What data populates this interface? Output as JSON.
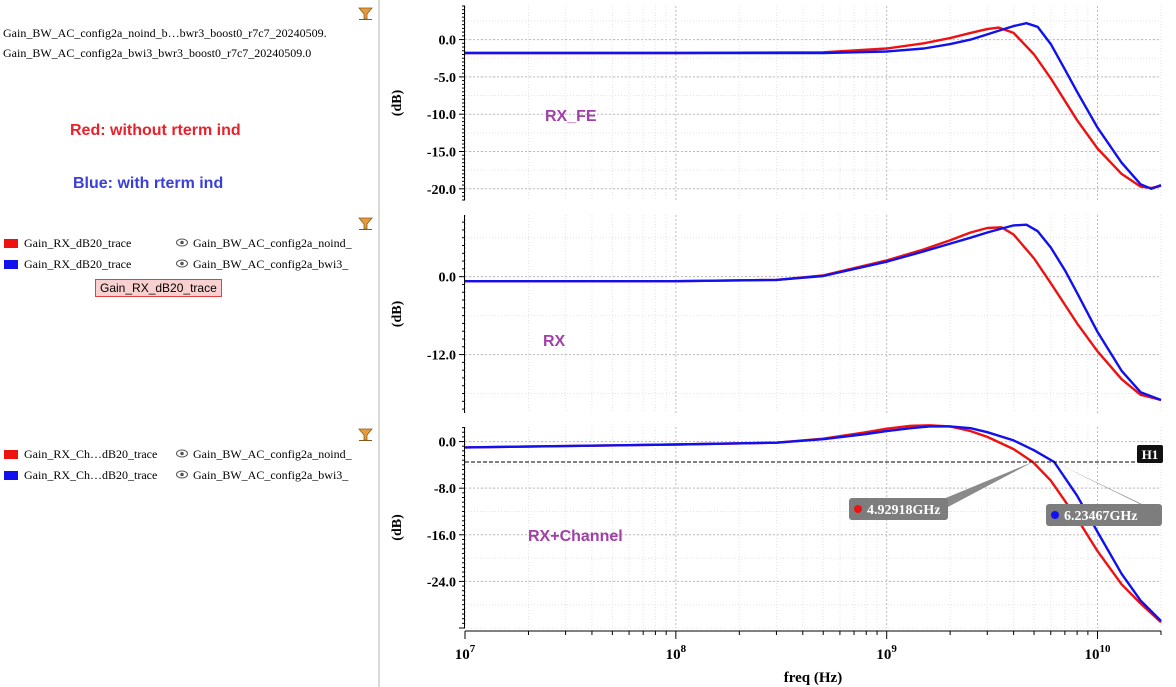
{
  "left_panel": {
    "files": [
      "Gain_BW_AC_config2a_noind_b…bwr3_boost0_r7c7_20240509.",
      "Gain_BW_AC_config2a_bwi3_bwr3_boost0_r7c7_20240509.0"
    ],
    "annotations": [
      {
        "text": "Red: without rterm ind",
        "color": "#e8212b"
      },
      {
        "text": "Blue: with rterm ind",
        "color": "#3a3fd9"
      }
    ],
    "legend_groups": [
      {
        "items": [
          {
            "name": "Gain_RX_dB20_trace",
            "source": "Gain_BW_AC_config2a_noind_",
            "color": "#ee1111"
          },
          {
            "name": "Gain_RX_dB20_trace",
            "source": "Gain_BW_AC_config2a_bwi3_",
            "color": "#1111ee"
          }
        ]
      },
      {
        "items": [
          {
            "name": "Gain_RX_Ch…dB20_trace",
            "source": "Gain_BW_AC_config2a_noind_",
            "color": "#ee1111"
          },
          {
            "name": "Gain_RX_Ch…dB20_trace",
            "source": "Gain_BW_AC_config2a_bwi3_",
            "color": "#1111ee"
          }
        ]
      }
    ],
    "selected_trace": "Gain_RX_dB20_trace"
  },
  "colors": {
    "red": "#ee1111",
    "blue": "#1111ee",
    "label": "#a040a8"
  },
  "chart_data": [
    {
      "type": "line",
      "title": "RX_FE",
      "xlabel": "freq (Hz)",
      "ylabel": "(dB)",
      "x_scale": "log",
      "xlim": [
        10000000.0,
        20000000000.0
      ],
      "ylim": [
        -21.5,
        4.5
      ],
      "y_ticks": [
        "0.0",
        "-5.0",
        "-10.0",
        "-15.0",
        "-20.0"
      ],
      "y_tick_values": [
        0,
        -5,
        -10,
        -15,
        -20
      ],
      "grid": true,
      "series": [
        {
          "color": "#ee1111",
          "x": [
            10000000.0,
            100000000.0,
            500000000.0,
            1000000000.0,
            1500000000.0,
            2000000000.0,
            2500000000.0,
            3000000000.0,
            3400000000.0,
            4000000000.0,
            5000000000.0,
            6000000000.0,
            7000000000.0,
            8000000000.0,
            10000000000.0,
            13000000000.0,
            16000000000.0,
            18000000000.0,
            20000000000.0
          ],
          "y": [
            -1.8,
            -1.8,
            -1.7,
            -1.2,
            -0.5,
            0.2,
            0.9,
            1.4,
            1.6,
            0.9,
            -2.0,
            -5.2,
            -8.2,
            -10.8,
            -14.6,
            -18.0,
            -19.7,
            -19.9,
            -19.6
          ]
        },
        {
          "color": "#1111ee",
          "x": [
            10000000.0,
            100000000.0,
            500000000.0,
            1000000000.0,
            1500000000.0,
            2000000000.0,
            2500000000.0,
            3000000000.0,
            3500000000.0,
            4000000000.0,
            4600000000.0,
            5200000000.0,
            6000000000.0,
            7000000000.0,
            8000000000.0,
            10000000000.0,
            13000000000.0,
            16000000000.0,
            18000000000.0,
            20000000000.0
          ],
          "y": [
            -1.8,
            -1.8,
            -1.8,
            -1.6,
            -1.2,
            -0.6,
            0.0,
            0.7,
            1.3,
            1.8,
            2.2,
            1.7,
            -0.6,
            -4.0,
            -7.0,
            -11.8,
            -16.5,
            -19.4,
            -20.0,
            -19.5
          ]
        }
      ]
    },
    {
      "type": "line",
      "title": "RX",
      "xlabel": "freq (Hz)",
      "ylabel": "(dB)",
      "x_scale": "log",
      "xlim": [
        10000000.0,
        20000000000.0
      ],
      "ylim": [
        -21,
        9.5
      ],
      "y_ticks": [
        "0.0",
        "-12.0"
      ],
      "y_tick_values": [
        0,
        -12
      ],
      "grid": true,
      "series": [
        {
          "color": "#ee1111",
          "x": [
            10000000.0,
            100000000.0,
            300000000.0,
            500000000.0,
            1000000000.0,
            1500000000.0,
            2000000000.0,
            2500000000.0,
            3000000000.0,
            3500000000.0,
            4000000000.0,
            5000000000.0,
            6000000000.0,
            8000000000.0,
            10000000000.0,
            13000000000.0,
            16000000000.0,
            20000000000.0
          ],
          "y": [
            -0.7,
            -0.7,
            -0.5,
            0.2,
            2.5,
            4.2,
            5.6,
            6.8,
            7.5,
            7.6,
            6.5,
            2.8,
            -1.0,
            -7.2,
            -11.5,
            -15.8,
            -18.2,
            -19.0
          ]
        },
        {
          "color": "#1111ee",
          "x": [
            10000000.0,
            100000000.0,
            300000000.0,
            500000000.0,
            1000000000.0,
            1500000000.0,
            2000000000.0,
            2500000000.0,
            3000000000.0,
            3500000000.0,
            4000000000.0,
            4600000000.0,
            5200000000.0,
            6000000000.0,
            7000000000.0,
            8000000000.0,
            10000000000.0,
            13000000000.0,
            16000000000.0,
            20000000000.0
          ],
          "y": [
            -0.7,
            -0.7,
            -0.5,
            0.1,
            2.3,
            3.9,
            5.1,
            6.0,
            6.8,
            7.4,
            7.9,
            8.0,
            7.0,
            4.5,
            1.0,
            -2.5,
            -8.5,
            -14.5,
            -17.8,
            -19.0
          ]
        }
      ]
    },
    {
      "type": "line",
      "title": "RX+Channel",
      "xlabel": "freq (Hz)",
      "ylabel": "(dB)",
      "x_scale": "log",
      "x_ticks": [
        "10^7",
        "10^8",
        "10^9",
        "10^10"
      ],
      "x_tick_values": [
        10000000.0,
        100000000.0,
        1000000000.0,
        10000000000.0
      ],
      "xlim": [
        10000000.0,
        20000000000.0
      ],
      "ylim": [
        -32,
        2.5
      ],
      "y_ticks": [
        "0.0",
        "-8.0",
        "-16.0",
        "-24.0"
      ],
      "y_tick_values": [
        0,
        -8,
        -16,
        -24
      ],
      "grid": true,
      "series": [
        {
          "color": "#ee1111",
          "x": [
            10000000.0,
            100000000.0,
            300000000.0,
            500000000.0,
            800000000.0,
            1000000000.0,
            1300000000.0,
            1600000000.0,
            2000000000.0,
            2500000000.0,
            3000000000.0,
            4000000000.0,
            4930000000.0,
            6000000000.0,
            8000000000.0,
            10000000000.0,
            13000000000.0,
            16000000000.0,
            20000000000.0
          ],
          "y": [
            -1.0,
            -0.5,
            -0.2,
            0.5,
            1.6,
            2.2,
            2.7,
            2.8,
            2.6,
            1.8,
            0.8,
            -1.3,
            -3.5,
            -6.7,
            -13.2,
            -18.8,
            -24.5,
            -27.8,
            -31.0
          ]
        },
        {
          "color": "#1111ee",
          "x": [
            10000000.0,
            100000000.0,
            300000000.0,
            500000000.0,
            800000000.0,
            1000000000.0,
            1300000000.0,
            1600000000.0,
            2000000000.0,
            2500000000.0,
            3000000000.0,
            4000000000.0,
            5000000000.0,
            6230000000.0,
            8000000000.0,
            10000000000.0,
            13000000000.0,
            16000000000.0,
            20000000000.0
          ],
          "y": [
            -1.0,
            -0.5,
            -0.2,
            0.4,
            1.3,
            1.8,
            2.3,
            2.6,
            2.6,
            2.3,
            1.6,
            0.2,
            -1.5,
            -3.5,
            -9.3,
            -15.5,
            -22.7,
            -27.3,
            -30.8
          ]
        }
      ],
      "horizontal_marker": {
        "label": "H1",
        "y": -3.5
      },
      "markers": [
        {
          "label": "4.92918GHz",
          "x": 4929180000.0,
          "color": "#ee1111"
        },
        {
          "label": "6.23467GHz",
          "x": 6234670000.0,
          "color": "#1111ee"
        }
      ]
    }
  ]
}
